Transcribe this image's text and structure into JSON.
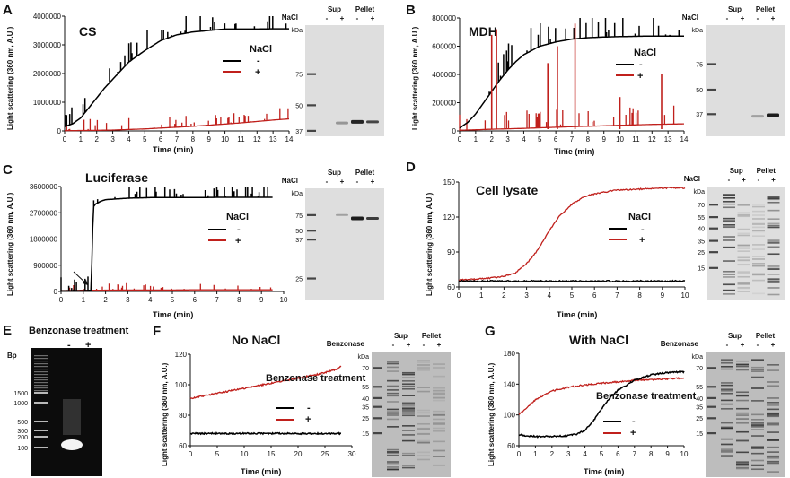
{
  "colors": {
    "minus": "#000000",
    "plus": "#c0201c"
  },
  "panels": {
    "A": {
      "label": "A",
      "title": "CS",
      "ylabel": "Light scattering (360 nm, A.U.)",
      "xlabel": "Time (min)",
      "legend_title": "NaCl",
      "legend_minus": "-",
      "legend_plus": "+"
    },
    "B": {
      "label": "B",
      "title": "MDH",
      "ylabel": "Light scattering (360 nm, A.U.)",
      "xlabel": "Time (min)",
      "legend_title": "NaCl",
      "legend_minus": "-",
      "legend_plus": "+"
    },
    "C": {
      "label": "C",
      "title": "Luciferase",
      "ylabel": "Light scattering (360 nm, A.U.)",
      "xlabel": "Time (min)",
      "legend_title": "NaCl",
      "legend_minus": "-",
      "legend_plus": "+"
    },
    "D": {
      "label": "D",
      "title": "Cell lysate",
      "ylabel": "Light scattering (360 nm, A.U.)",
      "xlabel": "Time (min)",
      "legend_title": "NaCl",
      "legend_minus": "-",
      "legend_plus": "+"
    },
    "E": {
      "label": "E",
      "header": "Benzonase treatment",
      "bp_label": "Bp",
      "markers": [
        "1500",
        "1000",
        "500",
        "300",
        "200",
        "100"
      ],
      "lane_minus": "-",
      "lane_plus": "+"
    },
    "F": {
      "label": "F",
      "title": "No NaCl",
      "ylabel": "Light scattering (360 nm, A.U.)",
      "xlabel": "Time (min)",
      "legend_title": "Benzonase treatment",
      "legend_minus": "-",
      "legend_plus": "+"
    },
    "G": {
      "label": "G",
      "title": "With NaCl",
      "ylabel": "Light scattering (360 nm, A.U.)",
      "xlabel": "Time (min)",
      "legend_title": "Benzonase treatment",
      "legend_minus": "-",
      "legend_plus": "+"
    }
  },
  "gels": {
    "A": {
      "row_label": "NaCl",
      "sup": "Sup",
      "pellet": "Pellet",
      "kda": "kDa",
      "signs": [
        "-",
        "+",
        "-",
        "+"
      ],
      "markers": [
        "75",
        "50",
        "37"
      ]
    },
    "B": {
      "row_label": "NaCl",
      "sup": "Sup",
      "pellet": "Pellet",
      "kda": "kDa",
      "signs": [
        "-",
        "+",
        "-",
        "+"
      ],
      "markers": [
        "75",
        "50",
        "37"
      ]
    },
    "C": {
      "row_label": "NaCl",
      "sup": "Sup",
      "pellet": "Pellet",
      "kda": "kDa",
      "signs": [
        "-",
        "+",
        "-",
        "+"
      ],
      "markers": [
        "75",
        "50",
        "37",
        "25"
      ]
    },
    "D": {
      "row_label": "NaCl",
      "sup": "Sup",
      "pellet": "Pellet",
      "kda": "kDa",
      "signs": [
        "-",
        "+",
        "-",
        "+"
      ],
      "markers": [
        "70",
        "55",
        "40",
        "35",
        "25",
        "15"
      ]
    },
    "F": {
      "row_label": "Benzonase",
      "sup": "Sup",
      "pellet": "Pellet",
      "kda": "kDa",
      "signs": [
        "-",
        "+",
        "-",
        "+"
      ],
      "markers": [
        "70",
        "55",
        "40",
        "35",
        "25",
        "15"
      ]
    },
    "G": {
      "row_label": "Benzonase",
      "sup": "Sup",
      "pellet": "Pellet",
      "kda": "kDa",
      "signs": [
        "-",
        "+",
        "-",
        "+"
      ],
      "markers": [
        "70",
        "55",
        "40",
        "35",
        "25",
        "15"
      ]
    }
  },
  "chart_data": [
    {
      "id": "A",
      "type": "line",
      "title": "CS",
      "xlabel": "Time (min)",
      "ylabel": "Light scattering (360 nm, A.U.)",
      "xlim": [
        0,
        14
      ],
      "ylim": [
        0,
        4000000
      ],
      "xticks": [
        0,
        1,
        2,
        3,
        4,
        5,
        6,
        7,
        8,
        9,
        10,
        11,
        12,
        13,
        14
      ],
      "yticks": [
        0,
        1000000,
        2000000,
        3000000,
        4000000
      ],
      "ytick_labels": [
        "0",
        "1000000",
        "2000000",
        "3000000",
        "4000000"
      ],
      "series": [
        {
          "name": "NaCl -",
          "color": "#000000",
          "x": [
            0,
            0.5,
            1,
            1.5,
            2,
            2.5,
            3,
            3.5,
            4,
            5,
            6,
            7,
            8,
            9,
            10,
            11,
            12,
            13,
            14
          ],
          "y": [
            150000,
            250000,
            450000,
            800000,
            1150000,
            1500000,
            1800000,
            2100000,
            2400000,
            2800000,
            3150000,
            3350000,
            3450000,
            3500000,
            3550000,
            3550000,
            3550000,
            3560000,
            3560000
          ]
        },
        {
          "name": "NaCl +",
          "color": "#c0201c",
          "x": [
            0,
            1,
            2,
            3,
            4,
            5,
            6,
            7,
            8,
            9,
            10,
            11,
            12,
            13,
            14
          ],
          "y": [
            10000,
            15000,
            20000,
            30000,
            50000,
            70000,
            100000,
            130000,
            160000,
            200000,
            240000,
            280000,
            330000,
            380000,
            420000
          ]
        }
      ]
    },
    {
      "id": "B",
      "type": "line",
      "title": "MDH",
      "xlabel": "Time (min)",
      "ylabel": "Light scattering (360 nm, A.U.)",
      "xlim": [
        0,
        14
      ],
      "ylim": [
        0,
        800000
      ],
      "xticks": [
        0,
        1,
        2,
        3,
        4,
        5,
        6,
        7,
        8,
        9,
        10,
        11,
        12,
        13,
        14
      ],
      "yticks": [
        0,
        200000,
        400000,
        600000,
        800000
      ],
      "ytick_labels": [
        "0",
        "200000",
        "400000",
        "600000",
        "800000"
      ],
      "series": [
        {
          "name": "NaCl -",
          "color": "#000000",
          "x": [
            0,
            0.5,
            1,
            1.5,
            2,
            2.5,
            3,
            3.5,
            4,
            5,
            6,
            7,
            8,
            9,
            10,
            11,
            12,
            13,
            14
          ],
          "y": [
            20000,
            60000,
            120000,
            200000,
            280000,
            360000,
            430000,
            490000,
            540000,
            600000,
            630000,
            650000,
            660000,
            665000,
            668000,
            670000,
            672000,
            672000,
            672000
          ]
        },
        {
          "name": "NaCl +",
          "color": "#c0201c",
          "x": [
            0,
            1,
            2,
            3,
            4,
            5,
            6,
            7,
            8,
            9,
            10,
            11,
            12,
            13,
            14
          ],
          "y": [
            5000,
            8000,
            12000,
            15000,
            18000,
            22000,
            26000,
            30000,
            33000,
            36000,
            40000,
            43000,
            46000,
            48000,
            50000
          ]
        }
      ]
    },
    {
      "id": "C",
      "type": "line",
      "title": "Luciferase",
      "xlabel": "Time (min)",
      "ylabel": "Light scattering (360 nm, A.U.)",
      "xlim": [
        0,
        10
      ],
      "ylim": [
        0,
        3600000
      ],
      "xticks": [
        0,
        1,
        2,
        3,
        4,
        5,
        6,
        7,
        8,
        9,
        10
      ],
      "yticks": [
        0,
        900000,
        1800000,
        2700000,
        3600000
      ],
      "ytick_labels": [
        "0",
        "900000",
        "1800000",
        "2700000",
        "3600000"
      ],
      "series": [
        {
          "name": "NaCl -",
          "color": "#000000",
          "x": [
            0,
            1,
            1.35,
            1.45,
            1.55,
            1.8,
            2,
            3,
            4,
            5,
            6,
            7,
            8,
            9,
            9.5
          ],
          "y": [
            20000,
            25000,
            40000,
            2900000,
            3000000,
            3100000,
            3150000,
            3200000,
            3220000,
            3220000,
            3220000,
            3230000,
            3230000,
            3230000,
            3230000
          ]
        },
        {
          "name": "NaCl +",
          "color": "#c0201c",
          "x": [
            0,
            1,
            2,
            3,
            4,
            5,
            6,
            7,
            8,
            9,
            9.5
          ],
          "y": [
            30000,
            40000,
            45000,
            50000,
            50000,
            50000,
            55000,
            55000,
            55000,
            55000,
            55000
          ]
        }
      ]
    },
    {
      "id": "D",
      "type": "line",
      "title": "Cell lysate",
      "xlabel": "Time (min)",
      "ylabel": "Light scattering (360 nm, A.U.)",
      "xlim": [
        0,
        10
      ],
      "ylim": [
        60,
        150
      ],
      "xticks": [
        0,
        1,
        2,
        3,
        4,
        5,
        6,
        7,
        8,
        9,
        10
      ],
      "yticks": [
        60,
        90,
        120,
        150
      ],
      "ytick_labels": [
        "60",
        "90",
        "120",
        "150"
      ],
      "series": [
        {
          "name": "NaCl -",
          "color": "#000000",
          "x": [
            0,
            1,
            2,
            3,
            4,
            5,
            6,
            7,
            8,
            9,
            10
          ],
          "y": [
            65,
            65,
            65,
            65,
            65,
            65,
            65,
            65,
            65,
            65,
            65
          ]
        },
        {
          "name": "NaCl +",
          "color": "#c0201c",
          "x": [
            0,
            1,
            2,
            2.5,
            3,
            3.5,
            4,
            4.5,
            5,
            5.5,
            6,
            7,
            8,
            9,
            10
          ],
          "y": [
            66,
            67,
            69,
            72,
            80,
            92,
            108,
            122,
            131,
            137,
            140,
            143,
            144,
            145,
            145
          ]
        }
      ]
    },
    {
      "id": "F",
      "type": "line",
      "title": "No NaCl",
      "xlabel": "Time (min)",
      "ylabel": "Light scattering (360 nm, A.U.)",
      "xlim": [
        0,
        30
      ],
      "ylim": [
        60,
        120
      ],
      "xticks": [
        0,
        5,
        10,
        15,
        20,
        25,
        30
      ],
      "yticks": [
        60,
        80,
        100,
        120
      ],
      "ytick_labels": [
        "60",
        "80",
        "100",
        "120"
      ],
      "series": [
        {
          "name": "Benzonase -",
          "color": "#000000",
          "x": [
            0,
            5,
            10,
            15,
            20,
            25,
            28
          ],
          "y": [
            68,
            68,
            68,
            68,
            68,
            68,
            68
          ]
        },
        {
          "name": "Benzonase +",
          "color": "#c0201c",
          "x": [
            0,
            3,
            6,
            9,
            12,
            15,
            18,
            21,
            24,
            27,
            28
          ],
          "y": [
            91,
            93,
            95,
            97,
            99,
            101,
            103,
            105,
            107,
            110,
            112
          ]
        }
      ]
    },
    {
      "id": "G",
      "type": "line",
      "title": "With NaCl",
      "xlabel": "Time (min)",
      "ylabel": "Light scattering (360 nm, A.U.)",
      "xlim": [
        0,
        10
      ],
      "ylim": [
        60,
        180
      ],
      "xticks": [
        0,
        1,
        2,
        3,
        4,
        5,
        6,
        7,
        8,
        9,
        10
      ],
      "yticks": [
        60,
        100,
        140,
        180
      ],
      "ytick_labels": [
        "60",
        "100",
        "140",
        "180"
      ],
      "series": [
        {
          "name": "Benzonase -",
          "color": "#000000",
          "x": [
            0,
            1,
            2,
            3,
            3.5,
            4,
            4.5,
            5,
            5.5,
            6,
            7,
            8,
            9,
            10
          ],
          "y": [
            74,
            72,
            72,
            73,
            75,
            80,
            92,
            108,
            122,
            132,
            145,
            152,
            155,
            156
          ]
        },
        {
          "name": "Benzonase +",
          "color": "#c0201c",
          "x": [
            0,
            0.5,
            1,
            2,
            3,
            4,
            5,
            6,
            7,
            8,
            9,
            10
          ],
          "y": [
            100,
            110,
            120,
            131,
            136,
            139,
            141,
            143,
            145,
            146,
            147,
            148
          ]
        }
      ]
    }
  ]
}
